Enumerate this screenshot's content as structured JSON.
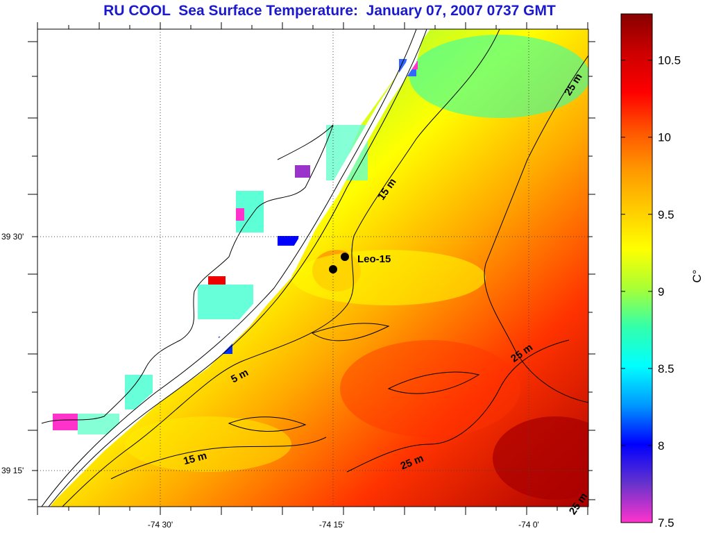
{
  "title": "RU COOL  Sea Surface Temperature:  January 07, 2007 0737 GMT",
  "map": {
    "lon_labels": [
      "-74 30'",
      "-74 15'",
      "-74 0'"
    ],
    "lat_labels": [
      "39 30'",
      "39 15'"
    ],
    "station": {
      "name": "Leo-15"
    },
    "depth_labels": [
      "25 m",
      "15 m",
      "5 m",
      "25 m",
      "25 m",
      "15 m",
      "25 m"
    ]
  },
  "colorbar": {
    "unit": "C°",
    "min": 7.5,
    "max": 10.8,
    "ticks": [
      "10.5",
      "10",
      "9.5",
      "9",
      "8.5",
      "8",
      "7.5"
    ],
    "tick_values": [
      10.5,
      10,
      9.5,
      9,
      8.5,
      8,
      7.5
    ],
    "colors": [
      "#ff33cc",
      "#6633cc",
      "#0000ff",
      "#0099ff",
      "#00ffff",
      "#33ffaa",
      "#aaff33",
      "#ffff00",
      "#ffcc00",
      "#ff9900",
      "#ff5500",
      "#ff0000",
      "#cc0000",
      "#880000"
    ]
  }
}
